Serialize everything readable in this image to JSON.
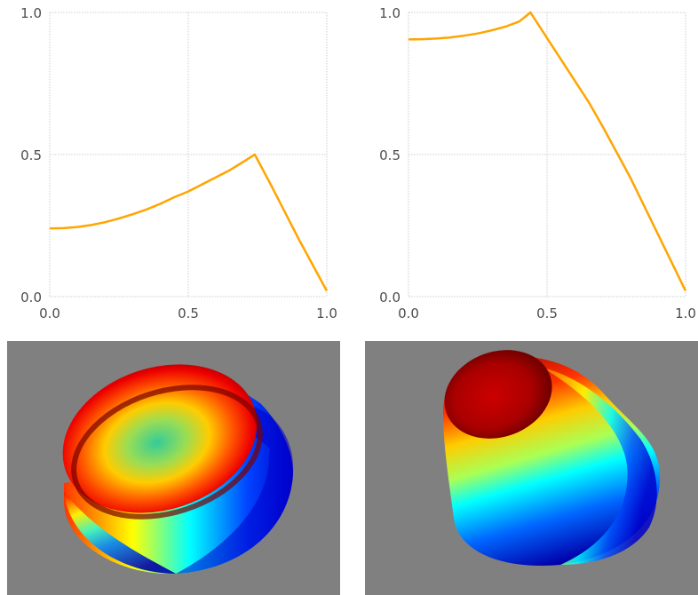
{
  "chart_data": [
    {
      "type": "line",
      "xlim": [
        0,
        1
      ],
      "ylim": [
        0,
        1
      ],
      "x_ticks": [
        "0.0",
        "0.5",
        "1.0"
      ],
      "y_ticks": [
        "0.0",
        "0.5",
        "1.0"
      ],
      "grid": true,
      "line_color": "#ffa500",
      "series": [
        {
          "x": [
            0.0,
            0.05,
            0.1,
            0.15,
            0.2,
            0.25,
            0.3,
            0.35,
            0.4,
            0.45,
            0.5,
            0.55,
            0.6,
            0.65,
            0.7,
            0.74,
            0.8,
            0.9,
            1.0
          ],
          "y": [
            0.24,
            0.241,
            0.245,
            0.252,
            0.262,
            0.275,
            0.29,
            0.307,
            0.327,
            0.35,
            0.37,
            0.395,
            0.42,
            0.445,
            0.475,
            0.5,
            0.39,
            0.2,
            0.02
          ]
        }
      ]
    },
    {
      "type": "line",
      "xlim": [
        0,
        1
      ],
      "ylim": [
        0,
        1
      ],
      "x_ticks": [
        "0.0",
        "0.5",
        "1.0"
      ],
      "y_ticks": [
        "0.0",
        "0.5",
        "1.0"
      ],
      "grid": true,
      "line_color": "#ffa500",
      "series": [
        {
          "x": [
            0.0,
            0.05,
            0.1,
            0.15,
            0.2,
            0.25,
            0.3,
            0.35,
            0.4,
            0.44,
            0.5,
            0.55,
            0.6,
            0.65,
            0.7,
            0.75,
            0.8,
            0.85,
            0.9,
            0.95,
            1.0
          ],
          "y": [
            0.905,
            0.906,
            0.908,
            0.912,
            0.918,
            0.926,
            0.937,
            0.95,
            0.968,
            1.0,
            0.91,
            0.835,
            0.76,
            0.685,
            0.6,
            0.51,
            0.42,
            0.32,
            0.22,
            0.12,
            0.02
          ]
        }
      ]
    }
  ],
  "renders": [
    {
      "view": "top-tilted",
      "colormap": "jet",
      "background": "#808080"
    },
    {
      "view": "side-tilted",
      "colormap": "jet",
      "background": "#808080"
    }
  ]
}
